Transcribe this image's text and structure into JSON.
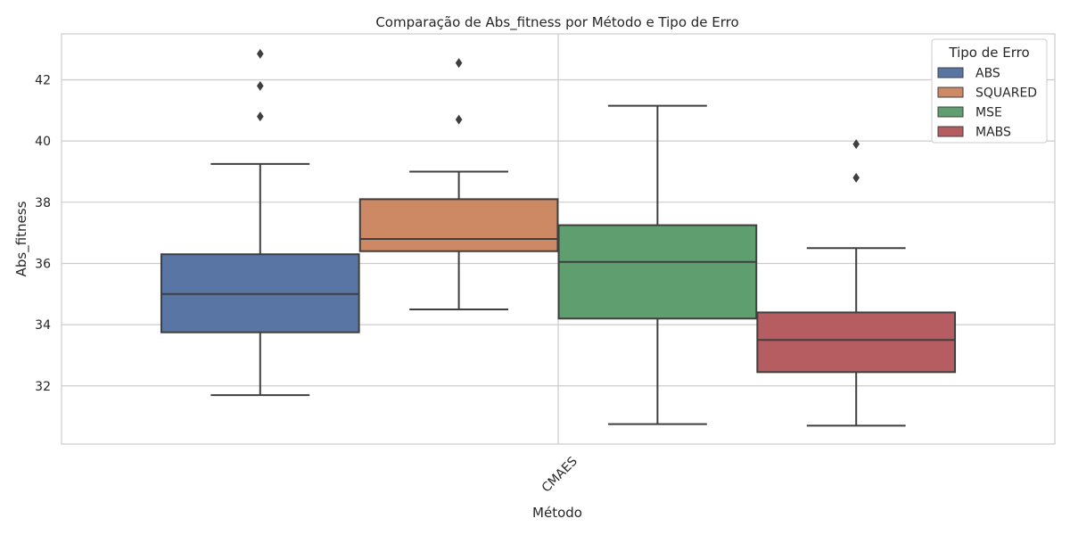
{
  "chart_data": {
    "type": "box",
    "title": "Comparação de Abs_fitness por Método e Tipo de Erro",
    "xlabel": "Método",
    "ylabel": "Abs_fitness",
    "categories": [
      "CMAES"
    ],
    "ylim": [
      30.1,
      43.5
    ],
    "yticks": [
      32,
      34,
      36,
      38,
      40,
      42
    ],
    "grid": true,
    "legend": {
      "title": "Tipo de Erro",
      "position": "top-right"
    },
    "series": [
      {
        "name": "ABS",
        "color": "#5875a4",
        "whisker_low": 31.7,
        "q1": 33.75,
        "median": 35.0,
        "q3": 36.3,
        "whisker_high": 39.25,
        "outliers": [
          40.8,
          41.8,
          42.85
        ]
      },
      {
        "name": "SQUARED",
        "color": "#cc8963",
        "whisker_low": 34.5,
        "q1": 36.4,
        "median": 36.8,
        "q3": 38.1,
        "whisker_high": 39.0,
        "outliers": [
          40.7,
          42.55
        ]
      },
      {
        "name": "MSE",
        "color": "#5f9e6e",
        "whisker_low": 30.75,
        "q1": 34.2,
        "median": 36.05,
        "q3": 37.25,
        "whisker_high": 41.15,
        "outliers": []
      },
      {
        "name": "MABS",
        "color": "#b55d60",
        "whisker_low": 30.7,
        "q1": 32.45,
        "median": 33.5,
        "q3": 34.4,
        "whisker_high": 36.5,
        "outliers": [
          38.8,
          39.9
        ]
      }
    ]
  }
}
